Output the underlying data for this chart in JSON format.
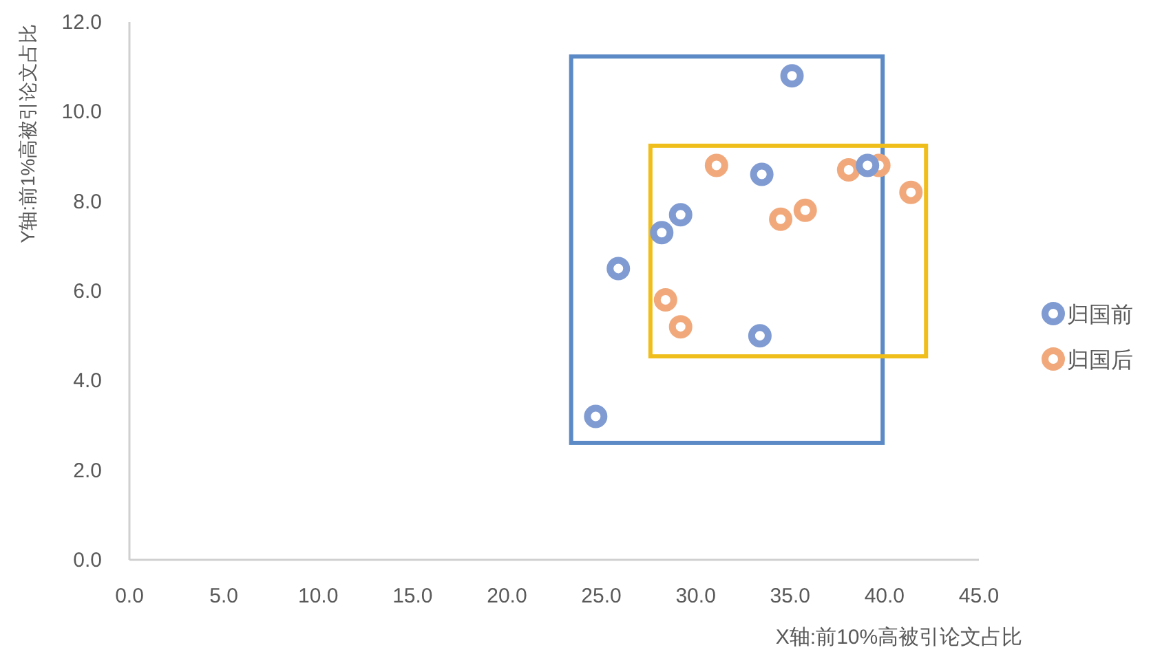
{
  "chart_data": {
    "type": "scatter",
    "xlabel": "X轴:前10%高被引论文占比",
    "ylabel": "Y轴:前1%高被引论文占比",
    "xlim": [
      0,
      45
    ],
    "ylim": [
      0,
      12
    ],
    "xticks": [
      {
        "value": 0,
        "label": "0.0"
      },
      {
        "value": 5,
        "label": "5.0"
      },
      {
        "value": 10,
        "label": "10.0"
      },
      {
        "value": 15,
        "label": "15.0"
      },
      {
        "value": 20,
        "label": "20.0"
      },
      {
        "value": 25,
        "label": "25.0"
      },
      {
        "value": 30,
        "label": "30.0"
      },
      {
        "value": 35,
        "label": "35.0"
      },
      {
        "value": 40,
        "label": "40.0"
      },
      {
        "value": 45,
        "label": "45.0"
      }
    ],
    "yticks": [
      {
        "value": 0,
        "label": "0.0"
      },
      {
        "value": 2,
        "label": "2.0"
      },
      {
        "value": 4,
        "label": "4.0"
      },
      {
        "value": 6,
        "label": "6.0"
      },
      {
        "value": 8,
        "label": "8.0"
      },
      {
        "value": 10,
        "label": "10.0"
      },
      {
        "value": 12,
        "label": "12.0"
      }
    ],
    "grid": false,
    "legend": "right",
    "marker": "circle",
    "series": [
      {
        "name": "归国前",
        "color": "#7f9bd2",
        "x": [
          35.1,
          33.5,
          39.1,
          29.2,
          28.2,
          25.9,
          33.4,
          24.7
        ],
        "values": [
          10.8,
          8.6,
          8.8,
          7.7,
          7.3,
          6.5,
          5.0,
          3.2
        ]
      },
      {
        "name": "归国后",
        "color": "#f1a97c",
        "x": [
          31.1,
          38.1,
          39.7,
          41.4,
          34.5,
          35.8,
          28.4,
          29.2
        ],
        "values": [
          8.8,
          8.7,
          8.8,
          8.2,
          7.6,
          7.8,
          5.8,
          5.2
        ]
      }
    ]
  }
}
